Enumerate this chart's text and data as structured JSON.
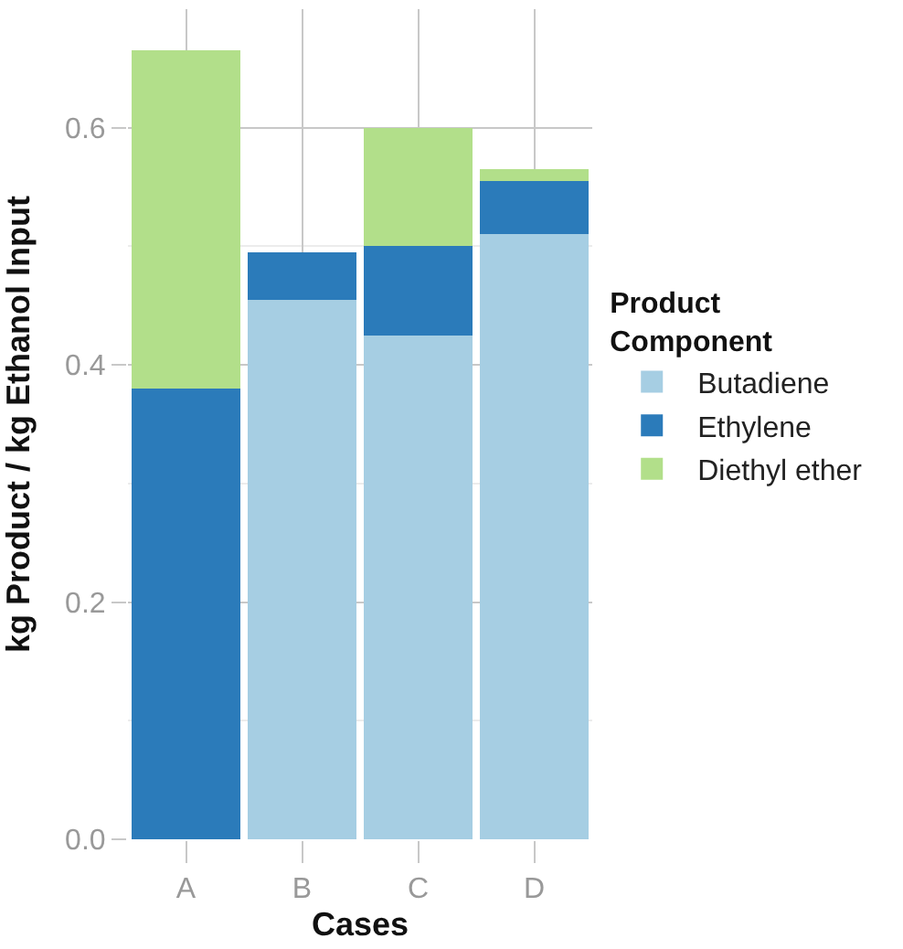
{
  "chart_data": {
    "type": "bar",
    "stacked": true,
    "xlabel": "Cases",
    "ylabel": "kg Product / kg Ethanol Input",
    "legend_title": "Product\nComponent",
    "categories": [
      "A",
      "B",
      "C",
      "D"
    ],
    "series": [
      {
        "name": "Butadiene",
        "color": "#a6cee3",
        "values": [
          0,
          0.455,
          0.425,
          0.51
        ]
      },
      {
        "name": "Ethylene",
        "color": "#2b7bba",
        "values": [
          0.38,
          0.04,
          0.075,
          0.045
        ]
      },
      {
        "name": "Diethyl ether",
        "color": "#b2df8a",
        "values": [
          0.285,
          0,
          0.1,
          0.01
        ]
      }
    ],
    "ylim": [
      0,
      0.7
    ],
    "yticks": [
      {
        "value": 0,
        "label": "0.0"
      },
      {
        "value": 0.2,
        "label": "0.2"
      },
      {
        "value": 0.4,
        "label": "0.4"
      },
      {
        "value": 0.6,
        "label": "0.6"
      }
    ],
    "grid": true,
    "legend": "right"
  }
}
